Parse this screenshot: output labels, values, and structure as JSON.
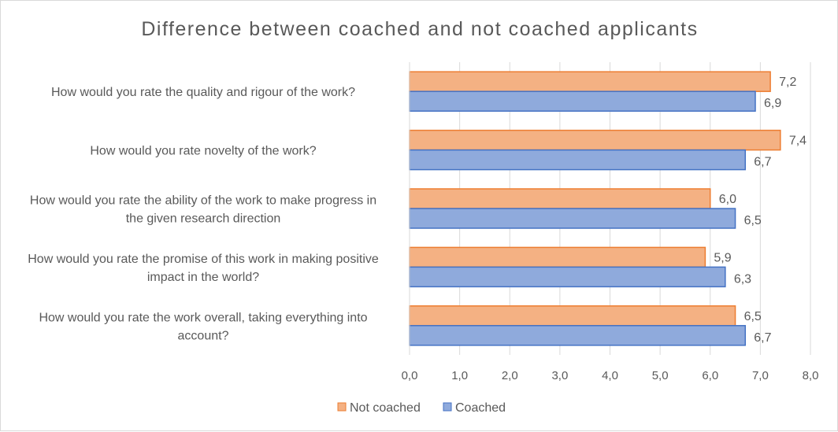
{
  "chart_data": {
    "type": "bar",
    "orientation": "horizontal",
    "title": "Difference between coached and not coached applicants",
    "categories": [
      [
        "How would you rate the quality and rigour of the work?"
      ],
      [
        "How would you rate novelty of the work?"
      ],
      [
        "How would you rate the ability of the work to make progress in",
        "the given research direction"
      ],
      [
        "How would you rate the promise of this work in making positive",
        "impact in the world?"
      ],
      [
        "How would you rate the work overall, taking everything into",
        "account?"
      ]
    ],
    "series": [
      {
        "name": "Not coached",
        "color": "#F4B183",
        "stroke": "#ED7D31",
        "values": [
          7.2,
          7.4,
          6.0,
          5.9,
          6.5
        ],
        "labels": [
          "7,2",
          "7,4",
          "6,0",
          "5,9",
          "6,5"
        ]
      },
      {
        "name": "Coached",
        "color": "#8FAADC",
        "stroke": "#4472C4",
        "values": [
          6.9,
          6.7,
          6.5,
          6.3,
          6.7
        ],
        "labels": [
          "6,9",
          "6,7",
          "6,5",
          "6,3",
          "6,7"
        ]
      }
    ],
    "xlim": [
      0,
      8
    ],
    "ticks": [
      0,
      1,
      2,
      3,
      4,
      5,
      6,
      7,
      8
    ],
    "tick_labels": [
      "0,0",
      "1,0",
      "2,0",
      "3,0",
      "4,0",
      "5,0",
      "6,0",
      "7,0",
      "8,0"
    ],
    "grid": "vertical",
    "legend_position": "bottom"
  }
}
